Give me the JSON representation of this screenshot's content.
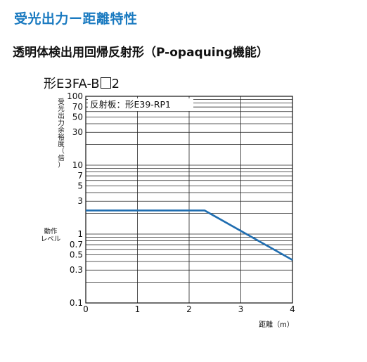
{
  "section_title": "受光出力ー距離特性",
  "sub_title": "透明体検出用回帰反射形（P-opaquing機能）",
  "model": {
    "prefix": "形E3FA-B",
    "suffix": "2"
  },
  "chart_data": {
    "type": "line",
    "annotation": "反射板：形E39-RP1",
    "ylabel": "受光出力余裕度（倍）",
    "ylabel_chars": [
      "受",
      "光",
      "出",
      "力",
      "余",
      "裕",
      "度",
      "（",
      "倍",
      "）"
    ],
    "xlabel": "距離（m）",
    "operating_level_label": [
      "動作",
      "レベル"
    ],
    "y_scale": "log",
    "ylim": [
      0.1,
      100
    ],
    "xlim": [
      0,
      4
    ],
    "x_ticks": [
      0,
      1,
      2,
      3,
      4
    ],
    "y_tick_labels": [
      {
        "v": 100,
        "t": "100"
      },
      {
        "v": 70,
        "t": "70"
      },
      {
        "v": 50,
        "t": "50"
      },
      {
        "v": 30,
        "t": "30"
      },
      {
        "v": 10,
        "t": "10"
      },
      {
        "v": 7,
        "t": "7"
      },
      {
        "v": 5,
        "t": "5"
      },
      {
        "v": 3,
        "t": "3"
      },
      {
        "v": 1,
        "t": "1"
      },
      {
        "v": 0.7,
        "t": "0.7"
      },
      {
        "v": 0.5,
        "t": "0.5"
      },
      {
        "v": 0.3,
        "t": "0.3"
      },
      {
        "v": 0.1,
        "t": "0.1"
      }
    ],
    "series": [
      {
        "x": [
          0,
          2.3,
          4
        ],
        "y": [
          2.2,
          2.2,
          0.42
        ]
      }
    ],
    "grid": true,
    "line_color": "#1f6db0"
  }
}
